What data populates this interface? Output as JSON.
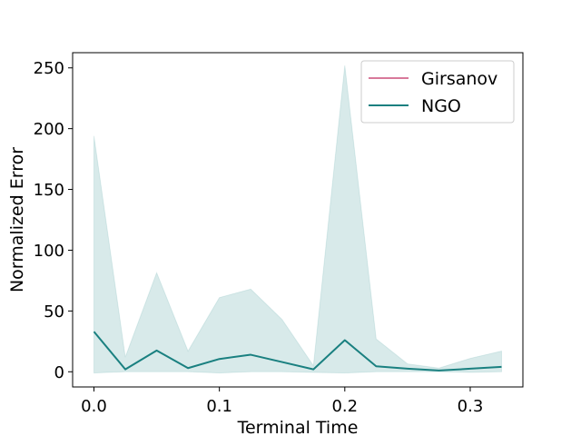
{
  "chart_data": {
    "type": "line",
    "title": "",
    "xlabel": "Terminal Time",
    "ylabel": "Normalized Error",
    "xlim": [
      -0.017,
      0.342
    ],
    "ylim": [
      -12.5,
      262.5
    ],
    "xticks": [
      0.0,
      0.1,
      0.2,
      0.3
    ],
    "xtick_labels": [
      "0.0",
      "0.1",
      "0.2",
      "0.3"
    ],
    "yticks": [
      0,
      50,
      100,
      150,
      200,
      250
    ],
    "ytick_labels": [
      "0",
      "50",
      "100",
      "150",
      "200",
      "250"
    ],
    "grid": false,
    "legend_position": "top-right",
    "series": [
      {
        "name": "Girsanov",
        "color": "#d8799a",
        "x": [],
        "values": []
      },
      {
        "name": "NGO",
        "color": "#1a8080",
        "band_color": "#1a8080",
        "x": [
          0.0,
          0.025,
          0.05,
          0.075,
          0.1,
          0.125,
          0.15,
          0.175,
          0.2,
          0.225,
          0.25,
          0.275,
          0.3,
          0.325
        ],
        "values": [
          33,
          2,
          17.5,
          3,
          10.5,
          14,
          8,
          2,
          26,
          4.5,
          2.5,
          1,
          2.5,
          4
        ],
        "upper": [
          194,
          12,
          81.5,
          17,
          61,
          68,
          43,
          5,
          252,
          27,
          6.5,
          3,
          11,
          17
        ],
        "lower": [
          -1,
          0,
          0,
          0,
          -1,
          0,
          0,
          -0.5,
          -1,
          0,
          0,
          0,
          -0.5,
          0
        ]
      }
    ]
  }
}
